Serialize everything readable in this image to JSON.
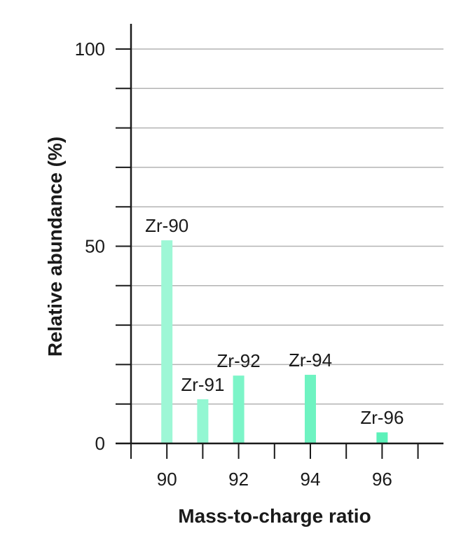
{
  "chart_data": {
    "type": "bar",
    "title": "",
    "xlabel": "Mass-to-charge ratio",
    "ylabel": "Relative abundance (%)",
    "xlim": [
      89,
      97
    ],
    "ylim": [
      0,
      105
    ],
    "x_tick_values": [
      89,
      90,
      91,
      92,
      93,
      94,
      95,
      96,
      97
    ],
    "x_tick_labels": [
      {
        "value": 90,
        "label": "90"
      },
      {
        "value": 92,
        "label": "92"
      },
      {
        "value": 94,
        "label": "94"
      },
      {
        "value": 96,
        "label": "96"
      }
    ],
    "y_tick_values": [
      0,
      10,
      20,
      30,
      40,
      50,
      60,
      70,
      80,
      90,
      100
    ],
    "y_tick_labels": [
      {
        "value": 0,
        "label": "0"
      },
      {
        "value": 50,
        "label": "50"
      },
      {
        "value": 100,
        "label": "100"
      }
    ],
    "grid": true,
    "bars": [
      {
        "x": 90,
        "value": 51.5,
        "label": "Zr-90",
        "color": "#9ef7d6"
      },
      {
        "x": 91,
        "value": 11.2,
        "label": "Zr-91",
        "color": "#93f7d2"
      },
      {
        "x": 92,
        "value": 17.2,
        "label": "Zr-92",
        "color": "#7cf5c8"
      },
      {
        "x": 94,
        "value": 17.4,
        "label": "Zr-94",
        "color": "#6ef3c1"
      },
      {
        "x": 96,
        "value": 2.8,
        "label": "Zr-96",
        "color": "#5cf1b9"
      }
    ],
    "colors": {
      "axis": "#1a1a1a",
      "grid": "#b3b3b3"
    }
  }
}
